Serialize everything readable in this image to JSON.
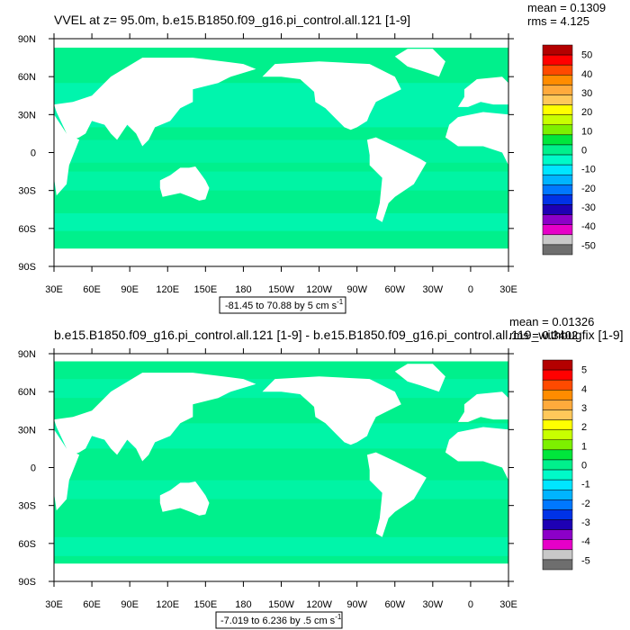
{
  "chart_data": [
    {
      "type": "heatmap",
      "title": "VVEL at z=  95.0m, b.e15.B1850.f09_g16.pi_control.all.121 [1-9]",
      "stats": {
        "mean": "mean = 0.1309",
        "rms": "rms = 4.125"
      },
      "range_label": "-81.45 to 70.88 by 5 cm s",
      "range_unit_exp": "-1",
      "x_ticks": [
        "30E",
        "60E",
        "90E",
        "120E",
        "150E",
        "180",
        "150W",
        "120W",
        "90W",
        "60W",
        "30W",
        "0",
        "30E"
      ],
      "y_ticks": [
        "90N",
        "60N",
        "30N",
        "0",
        "30S",
        "60S",
        "90S"
      ],
      "x_range_deg": [
        30,
        390
      ],
      "y_range_deg": [
        -90,
        90
      ],
      "colorbar": {
        "labels": [
          "50",
          "40",
          "30",
          "20",
          "10",
          "0",
          "-10",
          "-20",
          "-30",
          "-40",
          "-50"
        ],
        "colors": [
          "#b40000",
          "#ff0000",
          "#ff4a00",
          "#ff8c00",
          "#ffaa3c",
          "#ffc85a",
          "#ffff00",
          "#c8ff00",
          "#7df000",
          "#00e63c",
          "#00f08c",
          "#00fac8",
          "#00e6ff",
          "#00b4ff",
          "#0078ff",
          "#0032e6",
          "#1e00b4",
          "#8c00c8",
          "#e600c8",
          "#c8c8c8",
          "#6e6e6e"
        ]
      }
    },
    {
      "type": "heatmap",
      "title": "b.e15.B1850.f09_g16.pi_control.all.121 [1-9] - b.e15.B1850.f09_g16.pi_control.all.119_withbugfix [1-9]",
      "stats": {
        "mean": "mean = 0.01326",
        "rms": "rms = 0.3402"
      },
      "range_label": "-7.019 to 6.236 by .5 cm s",
      "range_unit_exp": "-1",
      "x_ticks": [
        "30E",
        "60E",
        "90E",
        "120E",
        "150E",
        "180",
        "150W",
        "120W",
        "90W",
        "60W",
        "30W",
        "0",
        "30E"
      ],
      "y_ticks": [
        "90N",
        "60N",
        "30N",
        "0",
        "30S",
        "60S",
        "90S"
      ],
      "x_range_deg": [
        30,
        390
      ],
      "y_range_deg": [
        -90,
        90
      ],
      "colorbar": {
        "labels": [
          "5",
          "4",
          "3",
          "2",
          "1",
          "0",
          "-1",
          "-2",
          "-3",
          "-4",
          "-5"
        ],
        "colors": [
          "#b40000",
          "#ff0000",
          "#ff4a00",
          "#ff8c00",
          "#ffaa3c",
          "#ffc85a",
          "#ffff00",
          "#c8ff00",
          "#7df000",
          "#00e63c",
          "#00f08c",
          "#00fac8",
          "#00e6ff",
          "#00b4ff",
          "#0078ff",
          "#0032e6",
          "#1e00b4",
          "#8c00c8",
          "#e600c8",
          "#c8c8c8",
          "#6e6e6e"
        ]
      }
    }
  ],
  "colors": {
    "ocean_mean": "#00f08c",
    "ocean_alt": "#00fac8",
    "land": "#ffffff"
  }
}
